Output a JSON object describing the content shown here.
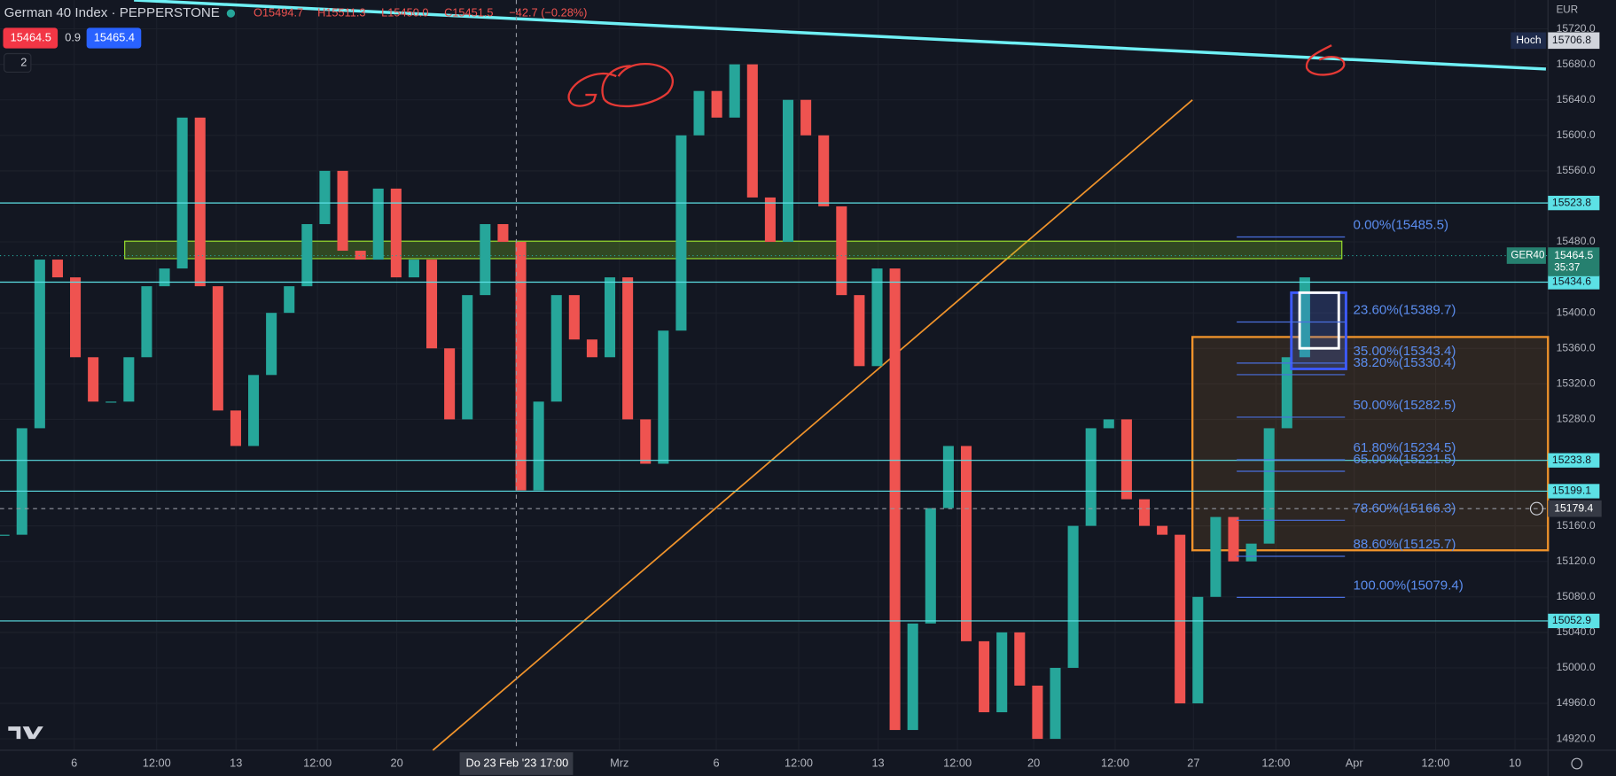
{
  "header": {
    "symbol": "German 40 Index · PEPPERSTONE",
    "open": "O15494.7",
    "high": "H15511.3",
    "low": "L15450.0",
    "close": "C15451.5",
    "change": "−42.7 (−0.28%)",
    "bid": "15464.5",
    "spread": "0.9",
    "ask": "15465.4",
    "indicators": "2"
  },
  "price_axis": {
    "currency": "EUR",
    "ylim": [
      14907.2,
      15752.5
    ],
    "yticks": [
      {
        "value": 15720,
        "label": "15720.0"
      },
      {
        "value": 15680,
        "label": "15680.0"
      },
      {
        "value": 15640,
        "label": "15640.0"
      },
      {
        "value": 15600,
        "label": "15600.0"
      },
      {
        "value": 15560,
        "label": "15560.0"
      },
      {
        "value": 15480,
        "label": "15480.0"
      },
      {
        "value": 15400,
        "label": "15400.0"
      },
      {
        "value": 15360,
        "label": "15360.0"
      },
      {
        "value": 15320,
        "label": "15320.0"
      },
      {
        "value": 15280,
        "label": "15280.0"
      },
      {
        "value": 15160,
        "label": "15160.0"
      },
      {
        "value": 15120,
        "label": "15120.0"
      },
      {
        "value": 15080,
        "label": "15080.0"
      },
      {
        "value": 15040,
        "label": "15040.0"
      },
      {
        "value": 15000,
        "label": "15000.0"
      },
      {
        "value": 14960,
        "label": "14960.0"
      },
      {
        "value": 14920,
        "label": "14920.0"
      }
    ]
  },
  "levels": [
    15523.8,
    15434.6,
    15233.8,
    15199.1,
    15052.9
  ],
  "hoch": {
    "label": "Hoch",
    "value": 15706.8
  },
  "last_price": {
    "symbol": "GER40",
    "value": 15464.5,
    "countdown": "35:37"
  },
  "crosshair": {
    "value": 15179.4,
    "date": "Do 23 Feb '23",
    "time": "17:00"
  },
  "fib": [
    {
      "label": "0.00%(15485.5)",
      "value": 15485.5
    },
    {
      "label": "23.60%(15389.7)",
      "value": 15389.7
    },
    {
      "label": "35.00%(15343.4)",
      "value": 15343.4
    },
    {
      "label": "38.20%(15330.4)",
      "value": 15330.4
    },
    {
      "label": "50.00%(15282.5)",
      "value": 15282.5
    },
    {
      "label": "61.80%(15234.5)",
      "value": 15234.5
    },
    {
      "label": "65.00%(15221.5)",
      "value": 15221.5
    },
    {
      "label": "78.60%(15166.3)",
      "value": 15166.3
    },
    {
      "label": "88.60%(15125.7)",
      "value": 15125.7
    },
    {
      "label": "100.00%(15079.4)",
      "value": 15079.4
    }
  ],
  "time_axis": [
    "6",
    "12:00",
    "13",
    "12:00",
    "20",
    "Mrz",
    "6",
    "12:00",
    "13",
    "12:00",
    "20",
    "12:00",
    "27",
    "12:00",
    "Apr",
    "12:00",
    "10"
  ],
  "candles": [
    15150,
    15270,
    15460,
    15440,
    15350,
    15300,
    15300,
    15350,
    15430,
    15450,
    15620,
    15430,
    15290,
    15250,
    15330,
    15400,
    15430,
    15500,
    15560,
    15470,
    15460,
    15540,
    15440,
    15460,
    15360,
    15280,
    15420,
    15500,
    15480,
    15200,
    15300,
    15420,
    15370,
    15350,
    15440,
    15280,
    15230,
    15380,
    15600,
    15650,
    15620,
    15680,
    15530,
    15480,
    15640,
    15600,
    15520,
    15420,
    15340,
    15450,
    14930,
    15050,
    15180,
    15250,
    15030,
    14950,
    15040,
    14980,
    14920,
    15000,
    15160,
    15270,
    15280,
    15190,
    15160,
    15150,
    14960,
    15080,
    15170,
    15120,
    15140,
    15270,
    15350,
    15440
  ]
}
